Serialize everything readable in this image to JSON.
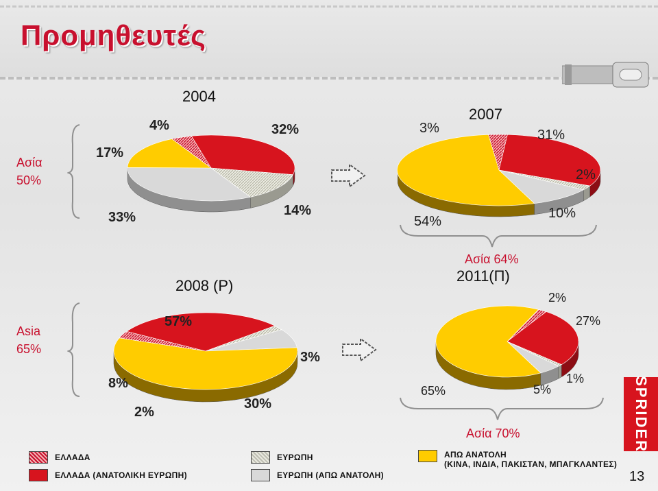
{
  "title": "Προμηθευτές",
  "page_number": "13",
  "colors": {
    "greece": "#c8102e",
    "greece_east_europe": "#d7141e",
    "europe": "#d3d3c6",
    "europe_not_east": "#d9d9d9",
    "far_east": "#ffcc00"
  },
  "chart_data": [
    {
      "type": "pie",
      "title": "2004",
      "slices": [
        {
          "series": "ΕΛΛΑΔΑ",
          "value": 4,
          "label": "4%"
        },
        {
          "series": "ΕΛΛΑΔΑ (ΑΝΑΤΟΛΙΚΗ ΕΥΡΩΠΗ)",
          "value": 32,
          "label": "32%"
        },
        {
          "series": "ΕΥΡΩΠΗ",
          "value": 14,
          "label": "14%"
        },
        {
          "series": "ΕΥΡΩΠΗ (ΑΠΩ ΑΝΑΤΟΛΗ)",
          "value": 33,
          "label": "33%"
        },
        {
          "series": "ΑΠΩ ΑΝΑΤΟΛΗ",
          "value": 17,
          "label": "17%"
        }
      ],
      "group_note": "Ασία 50%",
      "group_note_lines": [
        "Ασία",
        "50%"
      ]
    },
    {
      "type": "pie",
      "title": "2007",
      "slices": [
        {
          "series": "ΕΛΛΑΔΑ",
          "value": 3,
          "label": "3%"
        },
        {
          "series": "ΕΛΛΑΔΑ (ΑΝΑΤΟΛΙΚΗ ΕΥΡΩΠΗ)",
          "value": 31,
          "label": "31%"
        },
        {
          "series": "ΕΥΡΩΠΗ",
          "value": 2,
          "label": "2%"
        },
        {
          "series": "ΕΥΡΩΠΗ (ΑΠΩ ΑΝΑΤΟΛΗ)",
          "value": 10,
          "label": "10%"
        },
        {
          "series": "ΑΠΩ ΑΝΑΤΟΛΗ",
          "value": 54,
          "label": "54%"
        }
      ]
    },
    {
      "type": "pie",
      "title": "2008 (P)",
      "slices": [
        {
          "series": "ΕΛΛΑΔΑ",
          "value": 3,
          "label": "3%"
        },
        {
          "series": "ΕΛΛΑΔΑ (ΑΝΑΤΟΛΙΚΗ ΕΥΡΩΠΗ)",
          "value": 30,
          "label": "30%"
        },
        {
          "series": "ΕΥΡΩΠΗ",
          "value": 2,
          "label": "2%"
        },
        {
          "series": "ΕΥΡΩΠΗ (ΑΠΩ ΑΝΑΤΟΛΗ)",
          "value": 8,
          "label": "8%"
        },
        {
          "series": "ΑΠΩ ΑΝΑΤΟΛΗ",
          "value": 57,
          "label": "57%"
        }
      ],
      "group_note": "Asia 65%",
      "group_note_lines": [
        "Asia",
        "65%"
      ]
    },
    {
      "type": "pie",
      "title": "2011(Π)",
      "slices": [
        {
          "series": "ΕΛΛΑΔΑ",
          "value": 2,
          "label": "2%"
        },
        {
          "series": "ΕΛΛΑΔΑ (ΑΝΑΤΟΛΙΚΗ ΕΥΡΩΠΗ)",
          "value": 27,
          "label": "27%"
        },
        {
          "series": "ΕΥΡΩΠΗ",
          "value": 1,
          "label": "1%"
        },
        {
          "series": "ΕΥΡΩΠΗ (ΑΠΩ ΑΝΑΤΟΛΗ)",
          "value": 5,
          "label": "5%"
        },
        {
          "series": "ΑΠΩ ΑΝΑΤΟΛΗ",
          "value": 65,
          "label": "65%"
        }
      ],
      "group_note": "Ασία 64%"
    }
  ],
  "bottom_note": "Ασία 70%",
  "legend": [
    {
      "label": "ΕΛΛΑΔΑ"
    },
    {
      "label": "ΕΛΛΑΔΑ (ΑΝΑΤΟΛΙΚΗ ΕΥΡΩΠΗ)"
    },
    {
      "label": "ΕΥΡΩΠΗ"
    },
    {
      "label": "ΕΥΡΩΠΗ (ΑΠΩ ΑΝΑΤΟΛΗ)"
    },
    {
      "label_lines": [
        "ΑΠΩ ΑΝΑΤΟΛΗ",
        "(ΚΙΝΑ, ΙΝΔΙΑ, ΠΑΚΙΣΤΑΝ, ΜΠΑΓΚΛΑΝΤΕΣ)"
      ]
    }
  ],
  "logo": {
    "text": "SPRIDER"
  }
}
